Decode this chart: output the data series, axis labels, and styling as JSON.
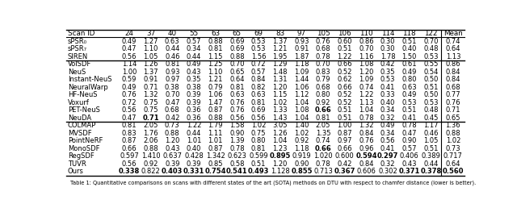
{
  "columns": [
    "Scan ID",
    "24",
    "37",
    "40",
    "55",
    "63",
    "65",
    "69",
    "83",
    "97",
    "105",
    "106",
    "110",
    "114",
    "118",
    "122",
    "Mean"
  ],
  "sections": [
    {
      "rows": [
        {
          "name": "sPSR₀",
          "values": [
            "0.49",
            "1.27",
            "0.63",
            "0.57",
            "0.88",
            "0.69",
            "0.53",
            "1.37",
            "0.93",
            "0.76",
            "0.60",
            "0.86",
            "0.30",
            "0.51",
            "0.70",
            "0.74"
          ],
          "bold": []
        },
        {
          "name": "sPSR₇",
          "values": [
            "0.47",
            "1.10",
            "0.44",
            "0.34",
            "0.81",
            "0.69",
            "0.53",
            "1.21",
            "0.91",
            "0.68",
            "0.51",
            "0.70",
            "0.30",
            "0.40",
            "0.48",
            "0.64"
          ],
          "bold": []
        },
        {
          "name": "SIREN",
          "values": [
            "0.56",
            "1.05",
            "0.46",
            "0.44",
            "1.15",
            "0.88",
            "1.56",
            "1.95",
            "1.87",
            "0.78",
            "1.22",
            "1.16",
            "1.78",
            "1.50",
            "0.53",
            "1.13"
          ],
          "bold": []
        }
      ]
    },
    {
      "rows": [
        {
          "name": "VolSDF",
          "values": [
            "1.14",
            "1.26",
            "0.81",
            "0.49",
            "1.25",
            "0.70",
            "0.72",
            "1.29",
            "1.18",
            "0.70",
            "0.66",
            "1.08",
            "0.42",
            "0.61",
            "0.55",
            "0.86"
          ],
          "bold": []
        },
        {
          "name": "NeuS",
          "values": [
            "1.00",
            "1.37",
            "0.93",
            "0.43",
            "1.10",
            "0.65",
            "0.57",
            "1.48",
            "1.09",
            "0.83",
            "0.52",
            "1.20",
            "0.35",
            "0.49",
            "0.54",
            "0.84"
          ],
          "bold": []
        },
        {
          "name": "Instant-NeuS",
          "values": [
            "0.59",
            "0.91",
            "0.97",
            "0.35",
            "1.21",
            "0.64",
            "0.84",
            "1.31",
            "1.44",
            "0.79",
            "0.62",
            "1.09",
            "0.53",
            "0.80",
            "0.50",
            "0.84"
          ],
          "bold": []
        },
        {
          "name": "NeuralWarp",
          "values": [
            "0.49",
            "0.71",
            "0.38",
            "0.38",
            "0.79",
            "0.81",
            "0.82",
            "1.20",
            "1.06",
            "0.68",
            "0.66",
            "0.74",
            "0.41",
            "0.63",
            "0.51",
            "0.68"
          ],
          "bold": []
        },
        {
          "name": "HF-NeuS",
          "values": [
            "0.76",
            "1.32",
            "0.70",
            "0.39",
            "1.06",
            "0.63",
            "0.63",
            "1.15",
            "1.12",
            "0.80",
            "0.52",
            "1.22",
            "0.33",
            "0.49",
            "0.50",
            "0.77"
          ],
          "bold": []
        },
        {
          "name": "Voxurf",
          "values": [
            "0.72",
            "0.75",
            "0.47",
            "0.39",
            "1.47",
            "0.76",
            "0.81",
            "1.02",
            "1.04",
            "0.92",
            "0.52",
            "1.13",
            "0.40",
            "0.53",
            "0.53",
            "0.76"
          ],
          "bold": []
        },
        {
          "name": "PET-NeuS",
          "values": [
            "0.56",
            "0.75",
            "0.68",
            "0.36",
            "0.87",
            "0.76",
            "0.69",
            "1.33",
            "1.08",
            "0.66",
            "0.51",
            "1.04",
            "0.34",
            "0.51",
            "0.48",
            "0.71"
          ],
          "bold": [
            9
          ]
        },
        {
          "name": "NeuDA",
          "values": [
            "0.47",
            "0.71",
            "0.42",
            "0.36",
            "0.88",
            "0.56",
            "0.56",
            "1.43",
            "1.04",
            "0.81",
            "0.51",
            "0.78",
            "0.32",
            "0.41",
            "0.45",
            "0.65"
          ],
          "bold": [
            1
          ]
        }
      ]
    },
    {
      "rows": [
        {
          "name": "COLMAP",
          "values": [
            "0.81",
            "2.05",
            "0.73",
            "1.22",
            "1.79",
            "1.58",
            "1.02",
            "3.05",
            "1.40",
            "2.05",
            "1.00",
            "1.32",
            "0.49",
            "0.78",
            "1.17",
            "1.36"
          ],
          "bold": []
        },
        {
          "name": "MVSDF",
          "values": [
            "0.83",
            "1.76",
            "0.88",
            "0.44",
            "1.11",
            "0.90",
            "0.75",
            "1.26",
            "1.02",
            "1.35",
            "0.87",
            "0.84",
            "0.34",
            "0.47",
            "0.46",
            "0.88"
          ],
          "bold": []
        },
        {
          "name": "PointNeRF",
          "values": [
            "0.87",
            "2.06",
            "1.20",
            "1.01",
            "1.01",
            "1.39",
            "0.80",
            "1.04",
            "0.92",
            "0.74",
            "0.97",
            "0.76",
            "0.56",
            "0.90",
            "1.05",
            "1.02"
          ],
          "bold": []
        },
        {
          "name": "MonoSDF",
          "values": [
            "0.66",
            "0.88",
            "0.43",
            "0.40",
            "0.87",
            "0.78",
            "0.81",
            "1.23",
            "1.18",
            "0.66",
            "0.66",
            "0.96",
            "0.41",
            "0.57",
            "0.51",
            "0.73"
          ],
          "bold": [
            9
          ]
        },
        {
          "name": "RegSDF",
          "values": [
            "0.597",
            "1.410",
            "0.637",
            "0.428",
            "1.342",
            "0.623",
            "0.599",
            "0.895",
            "0.919",
            "1.020",
            "0.600",
            "0.594",
            "0.297",
            "0.406",
            "0.389",
            "0.717"
          ],
          "bold": [
            7,
            11,
            12
          ]
        },
        {
          "name": "TUVR",
          "values": [
            "0.56",
            "0.92",
            "0.39",
            "0.39",
            "0.85",
            "0.58",
            "0.51",
            "1.20",
            "0.90",
            "0.78",
            "0.42",
            "0.84",
            "0.32",
            "0.43",
            "0.44",
            "0.64"
          ],
          "bold": []
        },
        {
          "name": "Ours",
          "values": [
            "0.338",
            "0.822",
            "0.403",
            "0.331",
            "0.754",
            "0.541",
            "0.493",
            "1.128",
            "0.855",
            "0.713",
            "0.367",
            "0.606",
            "0.302",
            "0.371",
            "0.378",
            "0.560"
          ],
          "bold": [
            0,
            2,
            3,
            4,
            5,
            6,
            8,
            10,
            13,
            14,
            15
          ]
        }
      ]
    }
  ],
  "caption": "Table 1: Quantitative comparisons on scans with different states of the art (SOTA) methods on DTU with respect to chamfer distance (lower is better)."
}
